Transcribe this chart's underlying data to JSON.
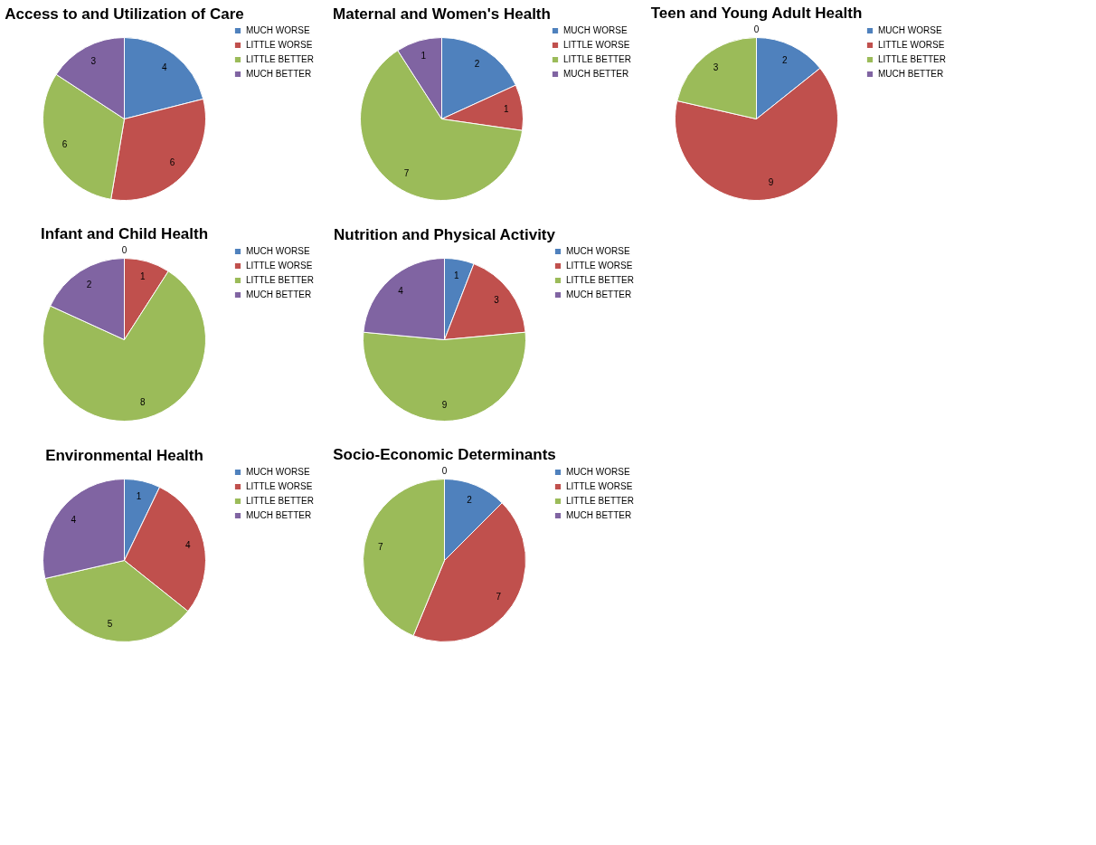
{
  "chart_data": [
    {
      "type": "pie",
      "title": "Access to and Utilization of Care",
      "categories": [
        "MUCH WORSE",
        "LITTLE WORSE",
        "LITTLE BETTER",
        "MUCH BETTER"
      ],
      "values": [
        4,
        6,
        6,
        3
      ],
      "colors": [
        "#4f81bd",
        "#c0504d",
        "#9bbb59",
        "#8064a2"
      ],
      "legend": "right",
      "value_labels": [
        "4",
        "6",
        "6",
        "3"
      ]
    },
    {
      "type": "pie",
      "title": "Maternal and Women's Health",
      "categories": [
        "MUCH WORSE",
        "LITTLE WORSE",
        "LITTLE BETTER",
        "MUCH BETTER"
      ],
      "values": [
        2,
        1,
        7,
        1
      ],
      "colors": [
        "#4f81bd",
        "#c0504d",
        "#9bbb59",
        "#8064a2"
      ],
      "legend": "right",
      "value_labels": [
        "2",
        "1",
        "7",
        "1"
      ]
    },
    {
      "type": "pie",
      "title": "Teen and Young Adult Health",
      "categories": [
        "MUCH WORSE",
        "LITTLE WORSE",
        "LITTLE BETTER",
        "MUCH BETTER"
      ],
      "values": [
        2,
        9,
        3,
        0
      ],
      "colors": [
        "#4f81bd",
        "#c0504d",
        "#9bbb59",
        "#8064a2"
      ],
      "legend": "right",
      "value_labels": [
        "2",
        "9",
        "3",
        "0"
      ]
    },
    {
      "type": "pie",
      "title": "Infant and Child Health",
      "categories": [
        "MUCH WORSE",
        "LITTLE WORSE",
        "LITTLE BETTER",
        "MUCH BETTER"
      ],
      "values": [
        0,
        1,
        8,
        2
      ],
      "colors": [
        "#4f81bd",
        "#c0504d",
        "#9bbb59",
        "#8064a2"
      ],
      "legend": "right",
      "value_labels": [
        "0",
        "1",
        "8",
        "2"
      ]
    },
    {
      "type": "pie",
      "title": "Nutrition and Physical Activity",
      "categories": [
        "MUCH WORSE",
        "LITTLE WORSE",
        "LITTLE BETTER",
        "MUCH BETTER"
      ],
      "values": [
        1,
        3,
        9,
        4
      ],
      "colors": [
        "#4f81bd",
        "#c0504d",
        "#9bbb59",
        "#8064a2"
      ],
      "legend": "right",
      "value_labels": [
        "1",
        "3",
        "9",
        "4"
      ]
    },
    {
      "type": "pie",
      "title": "Environmental Health",
      "categories": [
        "MUCH WORSE",
        "LITTLE WORSE",
        "LITTLE BETTER",
        "MUCH BETTER"
      ],
      "values": [
        1,
        4,
        5,
        4
      ],
      "colors": [
        "#4f81bd",
        "#c0504d",
        "#9bbb59",
        "#8064a2"
      ],
      "legend": "right",
      "value_labels": [
        "1",
        "4",
        "5",
        "4"
      ]
    },
    {
      "type": "pie",
      "title": "Socio-Economic Determinants",
      "categories": [
        "MUCH WORSE",
        "LITTLE WORSE",
        "LITTLE BETTER",
        "MUCH BETTER"
      ],
      "values": [
        2,
        7,
        7,
        0
      ],
      "colors": [
        "#4f81bd",
        "#c0504d",
        "#9bbb59",
        "#8064a2"
      ],
      "legend": "right",
      "value_labels": [
        "2",
        "7",
        "7",
        "0"
      ]
    }
  ]
}
